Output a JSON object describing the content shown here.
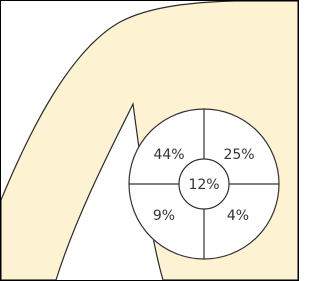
{
  "quadrants": {
    "upper_outer": "44%",
    "upper_inner": "25%",
    "central": "12%",
    "lower_outer": "9%",
    "lower_inner": "4%"
  }
}
